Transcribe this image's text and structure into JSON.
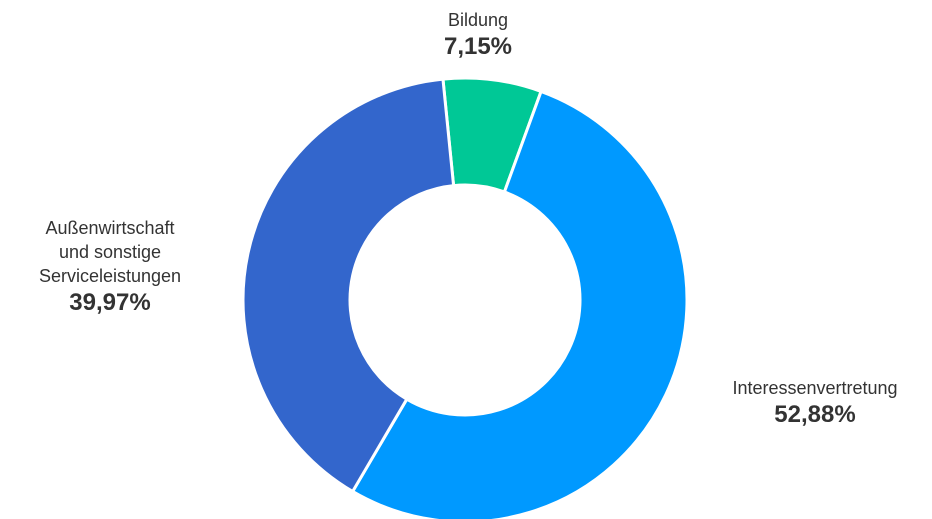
{
  "chart_data": {
    "type": "donut",
    "categories": [
      "Bildung",
      "Interessenvertretung",
      "Außenwirtschaft und sonstige Serviceleistungen"
    ],
    "values": [
      7.15,
      52.88,
      39.97
    ],
    "value_labels": [
      "7,15%",
      "52,88%",
      "39,97%"
    ],
    "colors": [
      "#00c896",
      "#0099ff",
      "#3366cc"
    ]
  }
}
